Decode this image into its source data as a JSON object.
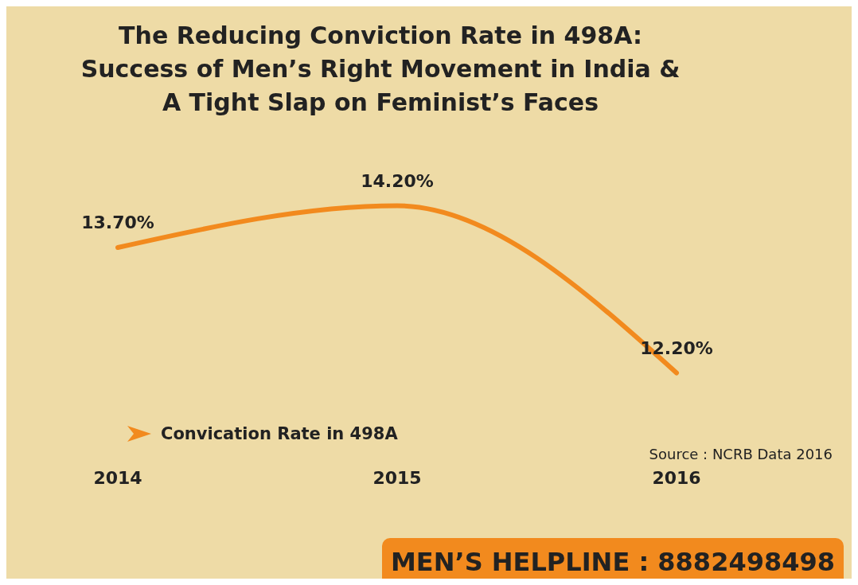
{
  "chart_data": {
    "type": "line",
    "title": "The Reducing Conviction Rate in 498A:\nSuccess of Men’s Right Movement in India &\nA Tight Slap on Feminist’s Faces",
    "categories": [
      "2014",
      "2015",
      "2016"
    ],
    "series": [
      {
        "name": "Convication Rate in 498A",
        "color": "#f28a1e",
        "values": [
          13.7,
          14.2,
          12.2
        ],
        "value_labels": [
          "13.70%",
          "14.20%",
          "12.20%"
        ]
      }
    ],
    "legend": "bottom left",
    "marker": "none",
    "line_style": "solid",
    "annotations": [
      "Source : NCRB Data 2016",
      "MEN’S HELPLINE : 8882498498"
    ]
  }
}
